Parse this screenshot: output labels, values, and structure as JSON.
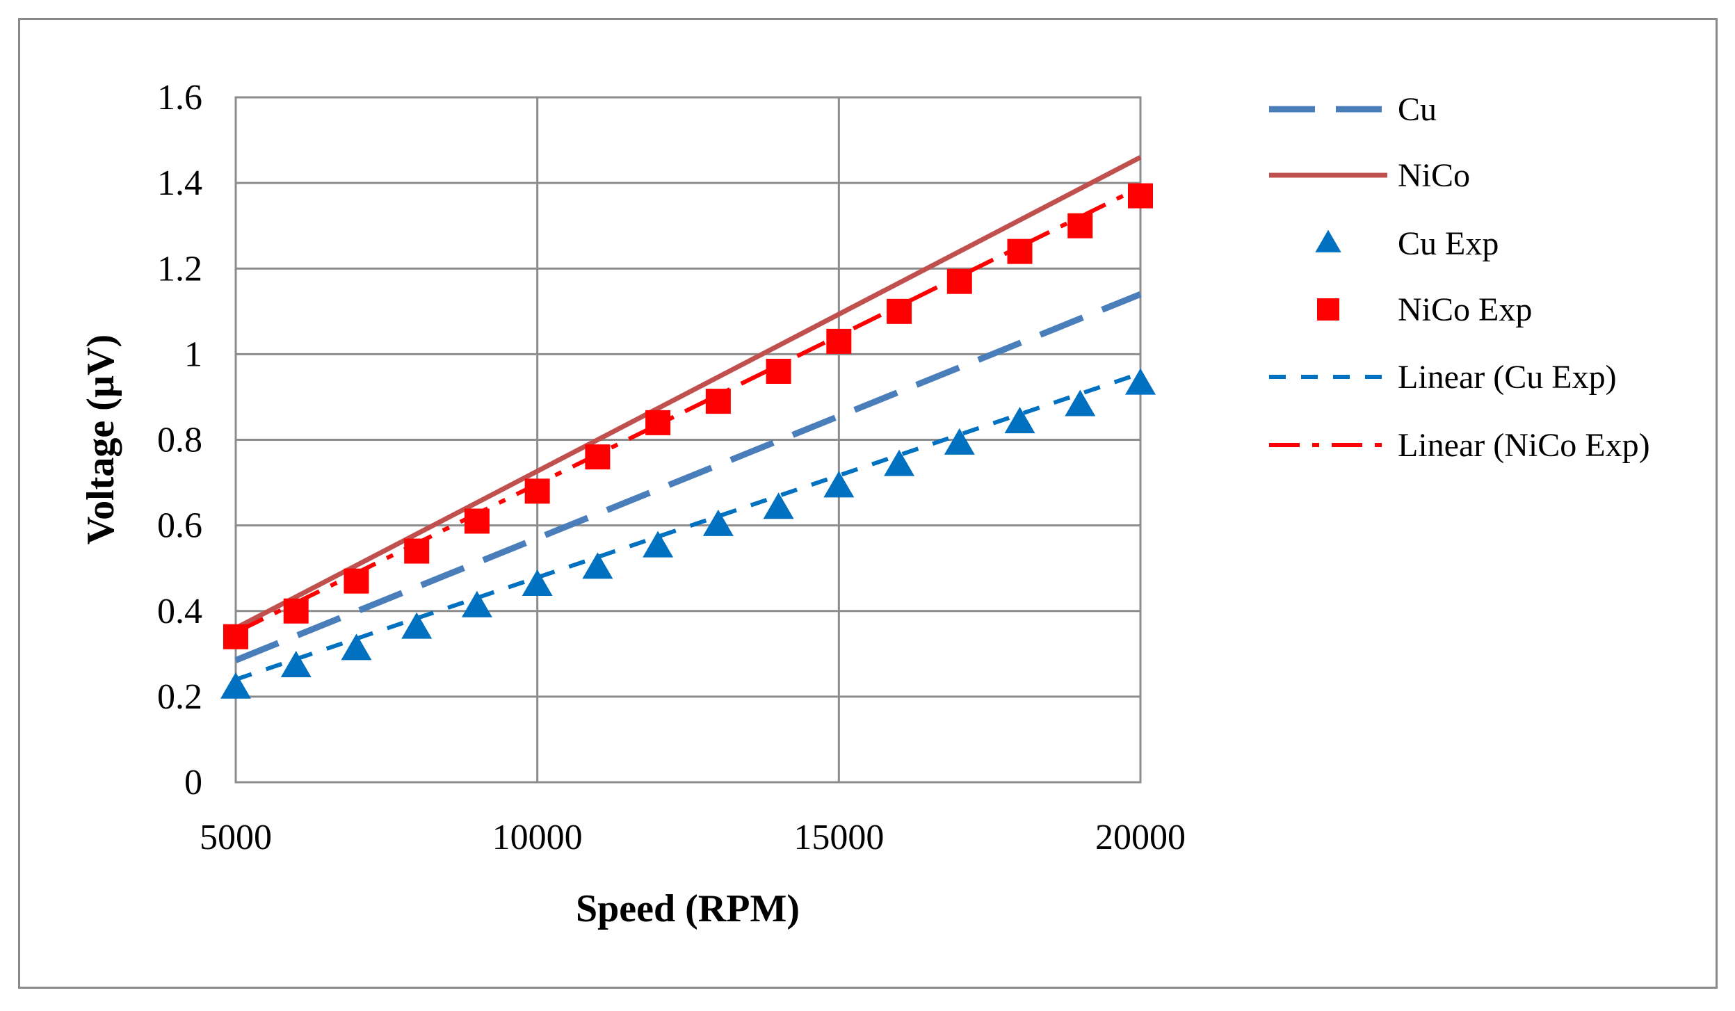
{
  "chart_data": {
    "type": "line",
    "title": "",
    "xlabel": "Speed (RPM)",
    "ylabel": "Voltage (µV)",
    "xlim": [
      5000,
      20000
    ],
    "ylim": [
      0,
      1.6
    ],
    "xticks": [
      5000,
      10000,
      15000,
      20000
    ],
    "xtick_labels": [
      "5000",
      "10000",
      "15000",
      "20000"
    ],
    "yticks": [
      0,
      0.2,
      0.4,
      0.6,
      0.8,
      1,
      1.2,
      1.4,
      1.6
    ],
    "ytick_labels": [
      "0",
      "0.2",
      "0.4",
      "0.6",
      "0.8",
      "1",
      "1.2",
      "1.4",
      "1.6"
    ],
    "grid": true,
    "legend_position": "right",
    "series": [
      {
        "key": "cu",
        "name": "Cu",
        "kind": "line",
        "style": "long-dash",
        "color": "#4a7ebb",
        "x": [
          5000,
          20000
        ],
        "y": [
          0.285,
          1.14
        ]
      },
      {
        "key": "nico",
        "name": "NiCo",
        "kind": "line",
        "style": "solid",
        "color": "#c0504d",
        "x": [
          5000,
          20000
        ],
        "y": [
          0.36,
          1.46
        ]
      },
      {
        "key": "cu_exp",
        "name": "Cu Exp",
        "kind": "scatter",
        "marker": "triangle",
        "color": "#0070c0",
        "x": [
          5000,
          6000,
          7000,
          8000,
          9000,
          10000,
          11000,
          12000,
          13000,
          14000,
          15000,
          16000,
          17000,
          18000,
          19000,
          20000
        ],
        "y": [
          0.22,
          0.27,
          0.31,
          0.36,
          0.41,
          0.46,
          0.5,
          0.55,
          0.6,
          0.64,
          0.69,
          0.74,
          0.79,
          0.84,
          0.88,
          0.93
        ]
      },
      {
        "key": "nico_exp",
        "name": "NiCo Exp",
        "kind": "scatter",
        "marker": "square",
        "color": "#ff0000",
        "x": [
          5000,
          6000,
          7000,
          8000,
          9000,
          10000,
          11000,
          12000,
          13000,
          14000,
          15000,
          16000,
          17000,
          18000,
          19000,
          20000
        ],
        "y": [
          0.34,
          0.4,
          0.47,
          0.54,
          0.61,
          0.68,
          0.76,
          0.84,
          0.89,
          0.96,
          1.03,
          1.1,
          1.17,
          1.24,
          1.3,
          1.37
        ]
      },
      {
        "key": "lin_cu",
        "name": "Linear (Cu Exp)",
        "kind": "line",
        "style": "short-dash",
        "color": "#0070c0",
        "x": [
          5000,
          20000
        ],
        "y": [
          0.24,
          0.955
        ]
      },
      {
        "key": "lin_nico",
        "name": "Linear (NiCo Exp)",
        "kind": "line",
        "style": "dash-dot",
        "color": "#ff0000",
        "x": [
          5000,
          20000
        ],
        "y": [
          0.35,
          1.39
        ]
      }
    ]
  }
}
